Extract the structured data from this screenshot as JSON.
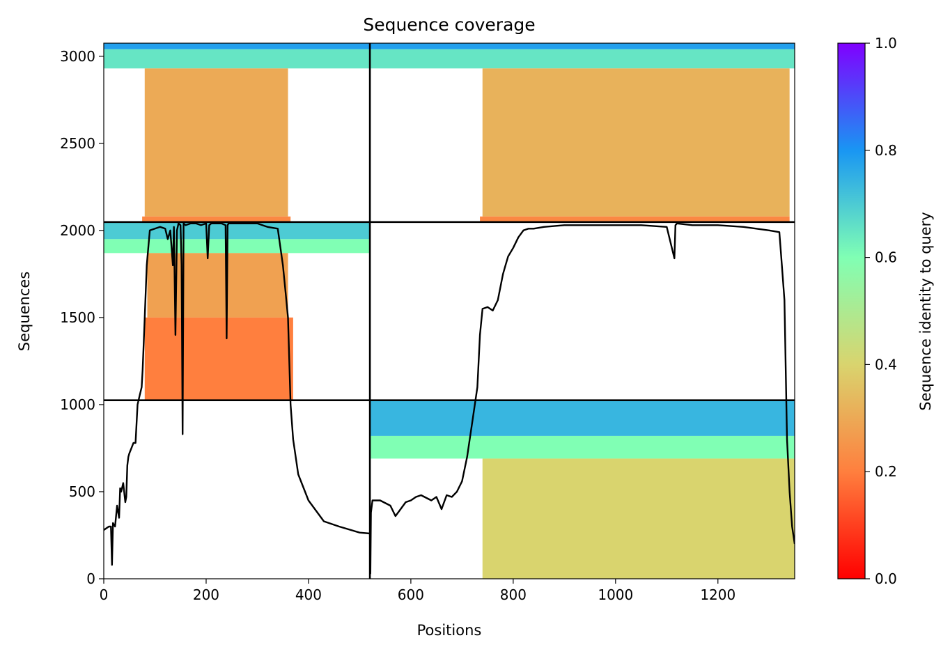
{
  "chart_data": {
    "type": "heatmap",
    "title": "Sequence coverage",
    "xlabel": "Positions",
    "ylabel": "Sequences",
    "xlim": [
      0,
      1350
    ],
    "ylim": [
      0,
      3075
    ],
    "x_ticks": [
      0,
      200,
      400,
      600,
      800,
      1000,
      1200
    ],
    "y_ticks": [
      0,
      500,
      1000,
      1500,
      2000,
      2500,
      3000
    ],
    "grid": false,
    "colorbar": {
      "label": "Sequence identity to query",
      "range": [
        0,
        1
      ],
      "ticks": [
        "0.0",
        "0.2",
        "0.4",
        "0.6",
        "0.8",
        "1.0"
      ],
      "colormap": "rainbow",
      "colors": [
        "#ff0000",
        "#ff7f3e",
        "#d9d46e",
        "#80ffb4",
        "#1996f3",
        "#8000ff"
      ]
    },
    "segment_boundaries_x": [
      520
    ],
    "segment_boundaries_y": [
      1025,
      2048
    ],
    "blocks": [
      {
        "x": [
          0,
          520
        ],
        "y": [
          2048,
          3075
        ],
        "bands": [
          {
            "y": [
              3040,
              3075
            ],
            "x": [
              0,
              520
            ],
            "identity": 0.78
          },
          {
            "y": [
              2930,
              3040
            ],
            "x": [
              0,
              520
            ],
            "identity": 0.65
          },
          {
            "y": [
              2080,
              2930
            ],
            "x": [
              80,
              360
            ],
            "identity": 0.3
          },
          {
            "y": [
              2048,
              2080
            ],
            "x": [
              75,
              365
            ],
            "identity": 0.22
          }
        ]
      },
      {
        "x": [
          520,
          1350
        ],
        "y": [
          2048,
          3075
        ],
        "bands": [
          {
            "y": [
              3040,
              3075
            ],
            "x": [
              520,
              1350
            ],
            "identity": 0.78
          },
          {
            "y": [
              2930,
              3040
            ],
            "x": [
              520,
              1350
            ],
            "identity": 0.65
          },
          {
            "y": [
              2080,
              2930
            ],
            "x": [
              740,
              1340
            ],
            "identity": 0.32
          },
          {
            "y": [
              2048,
              2080
            ],
            "x": [
              735,
              1340
            ],
            "identity": 0.22
          }
        ]
      },
      {
        "x": [
          0,
          520
        ],
        "y": [
          1025,
          2048
        ],
        "bands": [
          {
            "y": [
              1950,
              2048
            ],
            "x": [
              0,
              520
            ],
            "identity": 0.7
          },
          {
            "y": [
              1870,
              1950
            ],
            "x": [
              0,
              520
            ],
            "identity": 0.6
          },
          {
            "y": [
              1500,
              1870
            ],
            "x": [
              85,
              360
            ],
            "identity": 0.28
          },
          {
            "y": [
              1025,
              1500
            ],
            "x": [
              80,
              370
            ],
            "identity": 0.2
          }
        ]
      },
      {
        "x": [
          520,
          1350
        ],
        "y": [
          0,
          1025
        ],
        "bands": [
          {
            "y": [
              820,
              1025
            ],
            "x": [
              520,
              1350
            ],
            "identity": 0.74
          },
          {
            "y": [
              690,
              820
            ],
            "x": [
              520,
              1350
            ],
            "identity": 0.6
          },
          {
            "y": [
              0,
              690
            ],
            "x": [
              740,
              1350
            ],
            "identity": 0.4
          }
        ]
      }
    ],
    "coverage_line": {
      "name": "coverage",
      "color": "#000000",
      "x": [
        0,
        10,
        14,
        16,
        18,
        22,
        26,
        30,
        32,
        34,
        38,
        42,
        44,
        46,
        48,
        50,
        54,
        58,
        62,
        66,
        70,
        74,
        76,
        80,
        84,
        90,
        100,
        110,
        120,
        125,
        130,
        135,
        137,
        140,
        143,
        146,
        150,
        152,
        154,
        156,
        160,
        170,
        180,
        190,
        200,
        203,
        206,
        210,
        220,
        230,
        238,
        240,
        242,
        244,
        250,
        260,
        280,
        300,
        320,
        340,
        350,
        355,
        360,
        365,
        370,
        380,
        400,
        430,
        460,
        500,
        520,
        521,
        522,
        525,
        530,
        540,
        560,
        570,
        580,
        590,
        600,
        610,
        620,
        640,
        650,
        660,
        670,
        680,
        690,
        700,
        710,
        720,
        730,
        735,
        740,
        750,
        760,
        770,
        780,
        785,
        790,
        800,
        810,
        820,
        830,
        840,
        860,
        900,
        950,
        1000,
        1050,
        1100,
        1115,
        1117,
        1120,
        1150,
        1200,
        1250,
        1300,
        1320,
        1325,
        1330,
        1335,
        1340,
        1345,
        1350
      ],
      "y": [
        280,
        300,
        300,
        80,
        320,
        300,
        420,
        350,
        520,
        500,
        550,
        440,
        470,
        650,
        700,
        720,
        750,
        780,
        780,
        1000,
        1050,
        1100,
        1200,
        1500,
        1800,
        2000,
        2010,
        2020,
        2010,
        1950,
        2000,
        1800,
        2020,
        1400,
        2000,
        2040,
        2030,
        1800,
        830,
        2040,
        2030,
        2040,
        2040,
        2030,
        2040,
        1840,
        2030,
        2040,
        2040,
        2040,
        2030,
        1380,
        2030,
        2040,
        2040,
        2040,
        2040,
        2040,
        2020,
        2010,
        1800,
        1650,
        1500,
        1000,
        800,
        600,
        450,
        330,
        300,
        265,
        260,
        30,
        380,
        450,
        450,
        450,
        420,
        360,
        400,
        440,
        450,
        470,
        480,
        450,
        470,
        400,
        480,
        470,
        500,
        560,
        700,
        900,
        1100,
        1400,
        1550,
        1560,
        1540,
        1600,
        1750,
        1800,
        1850,
        1900,
        1960,
        2000,
        2010,
        2010,
        2020,
        2030,
        2030,
        2030,
        2030,
        2020,
        1840,
        2030,
        2040,
        2030,
        2030,
        2020,
        2000,
        1990,
        1800,
        1600,
        800,
        500,
        300,
        200
      ]
    }
  }
}
